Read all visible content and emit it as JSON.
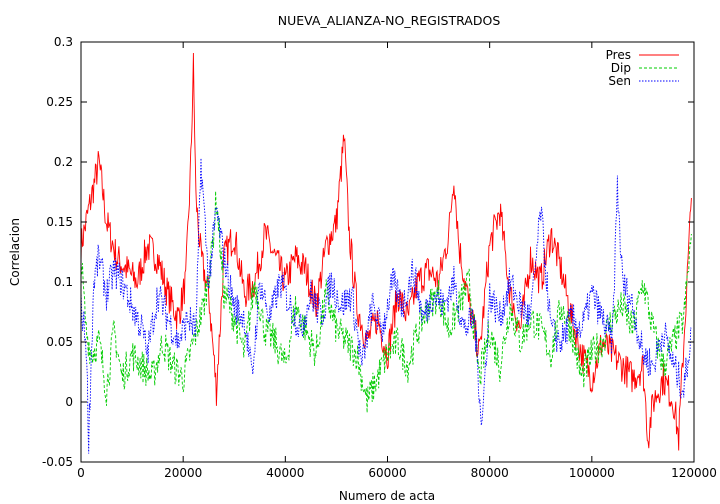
{
  "chart_data": {
    "type": "line",
    "title": "NUEVA_ALIANZA-NO_REGISTRADOS",
    "xlabel": "Numero de acta",
    "ylabel": "Correlacion",
    "xlim": [
      0,
      120000
    ],
    "ylim": [
      -0.05,
      0.3
    ],
    "x_ticks": [
      0,
      20000,
      40000,
      60000,
      80000,
      100000,
      120000
    ],
    "y_ticks": [
      -0.05,
      0,
      0.05,
      0.1,
      0.15,
      0.2,
      0.25,
      0.3
    ],
    "x_tick_labels": [
      "0",
      "20000",
      "40000",
      "60000",
      "80000",
      "100000",
      "120000"
    ],
    "y_tick_labels": [
      "-0.05",
      "0",
      "0.05",
      "0.1",
      "0.15",
      "0.2",
      "0.25",
      "0.3"
    ],
    "grid": false,
    "legend_position": "top-right",
    "series": [
      {
        "name": "Pres",
        "color": "#ff0000",
        "dash": "solid",
        "x": [
          0,
          2000,
          3500,
          5000,
          7000,
          9000,
          11000,
          13000,
          15000,
          17000,
          19000,
          20500,
          21500,
          22000,
          22500,
          23500,
          25000,
          26500,
          28000,
          30000,
          32000,
          34000,
          36000,
          38000,
          40000,
          42000,
          44000,
          46000,
          48000,
          50000,
          51500,
          52500,
          54000,
          56000,
          58000,
          60000,
          62000,
          64000,
          66000,
          68000,
          70000,
          72000,
          73000,
          74000,
          76000,
          78000,
          80000,
          82000,
          84000,
          86000,
          88000,
          90000,
          92000,
          94000,
          96000,
          98000,
          100000,
          102000,
          104000,
          106000,
          108000,
          110000,
          111000,
          112000,
          114000,
          116000,
          117000,
          118000,
          119500
        ],
        "values": [
          0.13,
          0.17,
          0.2,
          0.15,
          0.12,
          0.11,
          0.1,
          0.13,
          0.12,
          0.09,
          0.07,
          0.1,
          0.2,
          0.28,
          0.17,
          0.12,
          0.09,
          0.01,
          0.12,
          0.14,
          0.09,
          0.1,
          0.14,
          0.12,
          0.1,
          0.12,
          0.11,
          0.08,
          0.13,
          0.15,
          0.22,
          0.14,
          0.08,
          0.05,
          0.07,
          0.04,
          0.09,
          0.07,
          0.1,
          0.11,
          0.1,
          0.14,
          0.19,
          0.13,
          0.08,
          0.04,
          0.13,
          0.16,
          0.09,
          0.06,
          0.12,
          0.1,
          0.14,
          0.11,
          0.07,
          0.04,
          0.02,
          0.05,
          0.04,
          0.03,
          0.02,
          0.03,
          -0.03,
          0.0,
          0.02,
          0.0,
          -0.03,
          0.05,
          0.17
        ]
      },
      {
        "name": "Dip",
        "color": "#00cc00",
        "dash": "dashed",
        "x": [
          0,
          1000,
          2000,
          3500,
          5000,
          6500,
          8000,
          10000,
          12000,
          14000,
          16000,
          18000,
          20000,
          22000,
          24000,
          25500,
          26500,
          28000,
          30000,
          32000,
          34000,
          36000,
          38000,
          40000,
          42000,
          44000,
          46000,
          48000,
          50000,
          52000,
          54000,
          56000,
          58000,
          60000,
          62000,
          64000,
          66000,
          68000,
          70000,
          72000,
          74000,
          76000,
          78000,
          80000,
          82000,
          84000,
          86000,
          88000,
          90000,
          92000,
          94000,
          96000,
          98000,
          100000,
          102000,
          104000,
          106000,
          108000,
          110000,
          112000,
          114000,
          116000,
          118000,
          119500
        ],
        "values": [
          0.12,
          0.06,
          0.04,
          0.05,
          0.01,
          0.06,
          0.02,
          0.04,
          0.03,
          0.02,
          0.05,
          0.03,
          0.02,
          0.05,
          0.08,
          0.12,
          0.17,
          0.09,
          0.07,
          0.04,
          0.1,
          0.06,
          0.05,
          0.03,
          0.08,
          0.06,
          0.04,
          0.09,
          0.06,
          0.05,
          0.04,
          0.0,
          0.02,
          0.04,
          0.05,
          0.03,
          0.06,
          0.08,
          0.09,
          0.06,
          0.08,
          0.1,
          0.02,
          0.06,
          0.03,
          0.08,
          0.05,
          0.07,
          0.06,
          0.04,
          0.08,
          0.06,
          0.02,
          0.04,
          0.05,
          0.07,
          0.08,
          0.06,
          0.1,
          0.06,
          0.03,
          0.05,
          0.07,
          0.14
        ]
      },
      {
        "name": "Sen",
        "color": "#0000ff",
        "dash": "dotted",
        "x": [
          0,
          1000,
          1500,
          2500,
          3500,
          5000,
          6500,
          8000,
          10000,
          12000,
          13000,
          15000,
          17000,
          19000,
          21000,
          22500,
          23500,
          25000,
          26500,
          28000,
          30000,
          32000,
          33500,
          35000,
          37000,
          39000,
          41000,
          43000,
          45000,
          47000,
          49000,
          51000,
          53000,
          55000,
          57000,
          59000,
          61000,
          63000,
          65000,
          67000,
          69000,
          71000,
          73000,
          75000,
          77000,
          78500,
          80000,
          82000,
          84000,
          86000,
          88000,
          90000,
          92000,
          94000,
          96000,
          98000,
          100000,
          102000,
          104000,
          105000,
          106000,
          108000,
          110000,
          112000,
          114000,
          116000,
          118000,
          119500
        ],
        "values": [
          0.08,
          0.05,
          -0.03,
          0.1,
          0.12,
          0.09,
          0.11,
          0.1,
          0.08,
          0.06,
          0.04,
          0.09,
          0.07,
          0.05,
          0.07,
          0.06,
          0.2,
          0.1,
          0.16,
          0.12,
          0.08,
          0.07,
          0.02,
          0.1,
          0.07,
          0.1,
          0.08,
          0.06,
          0.09,
          0.07,
          0.1,
          0.08,
          0.09,
          0.03,
          0.08,
          0.06,
          0.1,
          0.08,
          0.11,
          0.07,
          0.09,
          0.08,
          0.1,
          0.06,
          0.07,
          -0.02,
          0.09,
          0.07,
          0.1,
          0.08,
          0.07,
          0.16,
          0.06,
          0.05,
          0.07,
          0.06,
          0.09,
          0.07,
          0.05,
          0.18,
          0.1,
          0.08,
          0.04,
          0.03,
          0.06,
          0.03,
          0.01,
          0.06
        ]
      }
    ]
  }
}
